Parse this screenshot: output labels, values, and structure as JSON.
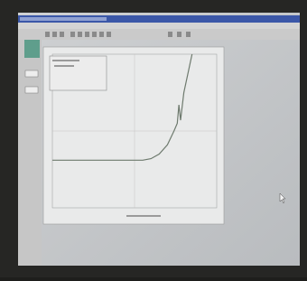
{
  "chart_data": {
    "type": "line",
    "x": [
      0,
      20,
      40,
      55,
      60,
      65,
      70,
      74,
      76,
      77,
      78,
      80,
      84,
      85
    ],
    "series": [
      {
        "color": "#6e7a6e",
        "values": [
          31,
          31,
          31,
          31,
          32,
          35,
          41,
          50,
          55,
          67,
          57,
          75,
          95,
          100
        ]
      }
    ],
    "xlim": [
      0,
      100
    ],
    "ylim": [
      0,
      100
    ]
  }
}
